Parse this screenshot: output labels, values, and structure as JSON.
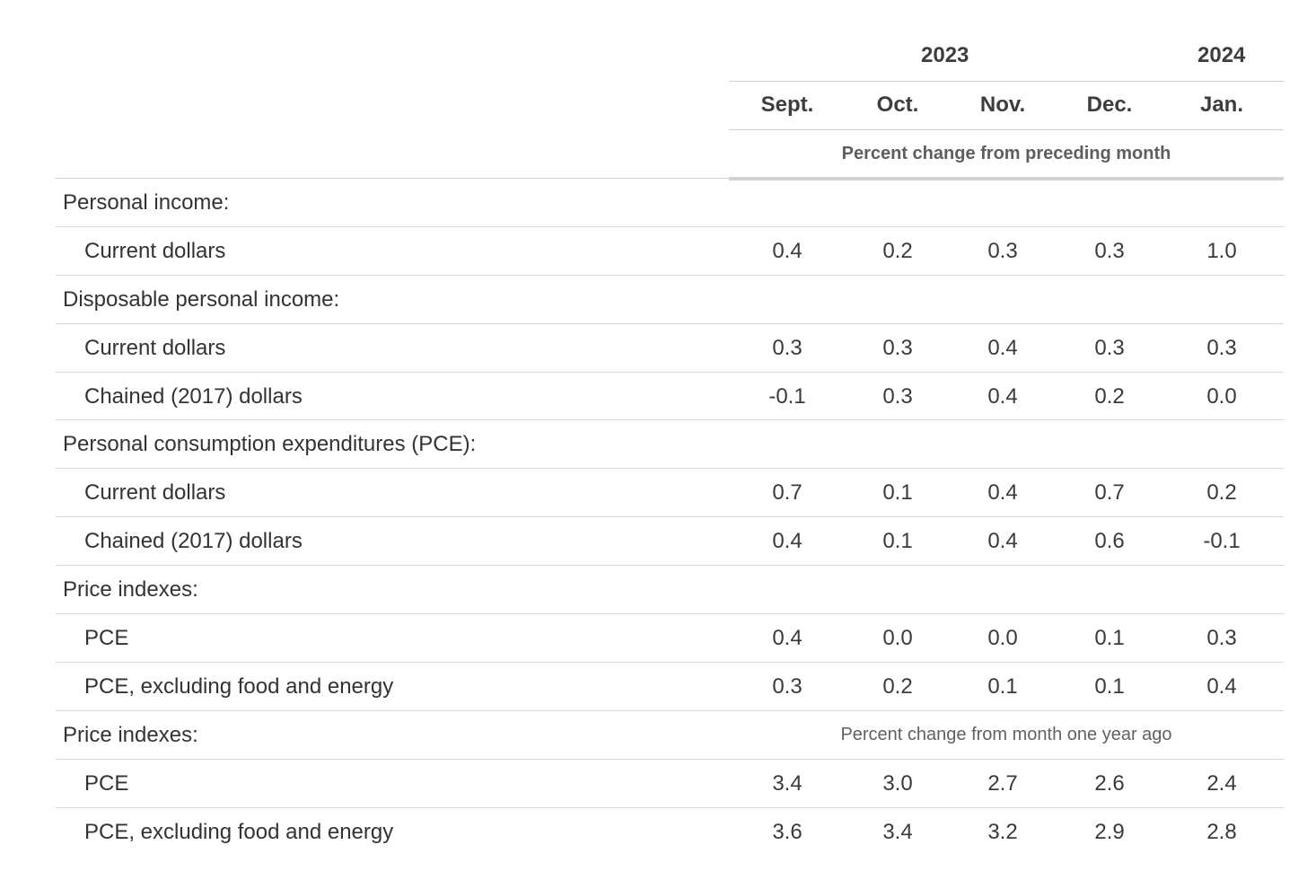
{
  "header": {
    "years": [
      "2023",
      "2024"
    ],
    "months": [
      "Sept.",
      "Oct.",
      "Nov.",
      "Dec.",
      "Jan."
    ],
    "note": "Percent change from preceding month"
  },
  "rows": [
    {
      "label": "Personal income:",
      "type": "section",
      "values": []
    },
    {
      "label": "Current dollars",
      "type": "sub",
      "values": [
        "0.4",
        "0.2",
        "0.3",
        "0.3",
        "1.0"
      ]
    },
    {
      "label": "Disposable personal income:",
      "type": "section",
      "values": []
    },
    {
      "label": "Current dollars",
      "type": "sub",
      "values": [
        "0.3",
        "0.3",
        "0.4",
        "0.3",
        "0.3"
      ]
    },
    {
      "label": "Chained (2017) dollars",
      "type": "sub",
      "values": [
        "-0.1",
        "0.3",
        "0.4",
        "0.2",
        "0.0"
      ]
    },
    {
      "label": "Personal consumption expenditures (PCE):",
      "type": "section",
      "values": []
    },
    {
      "label": "Current dollars",
      "type": "sub",
      "values": [
        "0.7",
        "0.1",
        "0.4",
        "0.7",
        "0.2"
      ]
    },
    {
      "label": "Chained (2017) dollars",
      "type": "sub",
      "values": [
        "0.4",
        "0.1",
        "0.4",
        "0.6",
        "-0.1"
      ]
    },
    {
      "label": "Price indexes:",
      "type": "section",
      "values": []
    },
    {
      "label": "PCE",
      "type": "sub",
      "values": [
        "0.4",
        "0.0",
        "0.0",
        "0.1",
        "0.3"
      ]
    },
    {
      "label": "PCE, excluding food and energy",
      "type": "sub",
      "values": [
        "0.3",
        "0.2",
        "0.1",
        "0.1",
        "0.4"
      ]
    },
    {
      "label": "Price indexes:",
      "type": "section",
      "values": [],
      "note": "Percent change from month one year ago"
    },
    {
      "label": "PCE",
      "type": "sub",
      "values": [
        "3.4",
        "3.0",
        "2.7",
        "2.6",
        "2.4"
      ]
    },
    {
      "label": "PCE, excluding food and energy",
      "type": "sub",
      "values": [
        "3.6",
        "3.4",
        "3.2",
        "2.9",
        "2.8"
      ]
    }
  ]
}
